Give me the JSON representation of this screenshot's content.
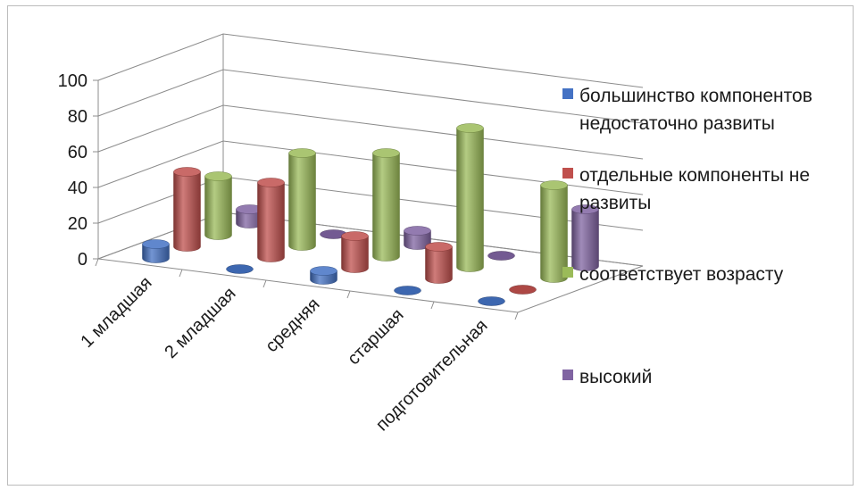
{
  "chart_data": {
    "type": "bar",
    "style": "3d-cylinder",
    "categories": [
      "1 младшая",
      "2 младшая",
      "средняя",
      "старшая",
      "подготовительная"
    ],
    "series": [
      {
        "name": "большинство компонентов недостаточно развиты",
        "color": "#4472C4",
        "values": [
          8,
          0,
          5,
          0,
          0
        ]
      },
      {
        "name": "отдельные компоненты не развиты",
        "color": "#C0504D",
        "values": [
          42,
          42,
          18,
          18,
          0
        ]
      },
      {
        "name": "соответствует возрасту",
        "color": "#9BBB59",
        "values": [
          33,
          52,
          58,
          78,
          52
        ]
      },
      {
        "name": "высокий",
        "color": "#8064A2",
        "values": [
          8,
          0,
          8,
          0,
          32
        ]
      }
    ],
    "yticks": [
      0,
      20,
      40,
      60,
      80,
      100
    ],
    "ylim": [
      0,
      100
    ],
    "grid": true,
    "legend_position": "right"
  }
}
